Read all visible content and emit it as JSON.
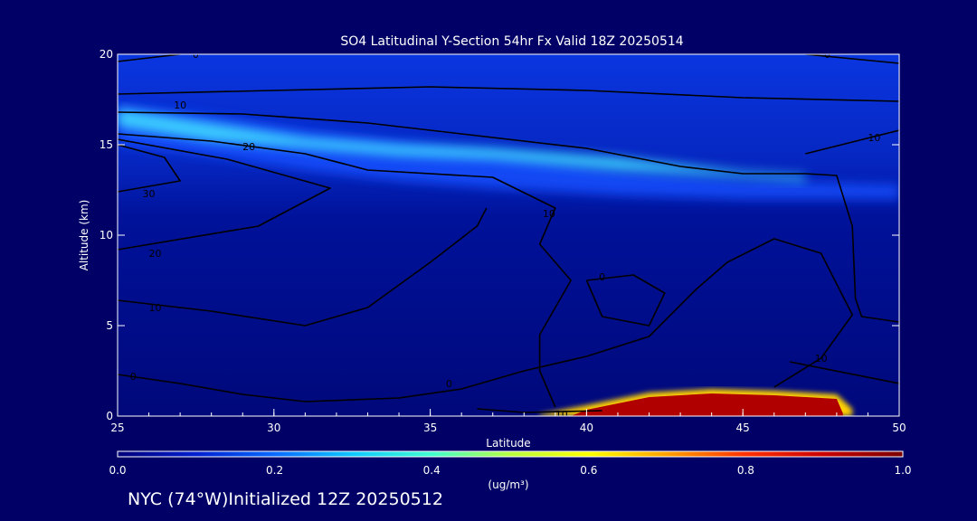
{
  "chart_data": {
    "type": "heatmap",
    "title": "SO4 Latitudinal Y-Section 54hr  Fx Valid 18Z 20250514",
    "xlabel": "Latitude",
    "ylabel": "Altitude (km)",
    "xlim": [
      25,
      50
    ],
    "ylim": [
      0,
      20
    ],
    "x_ticks": [
      25,
      30,
      35,
      40,
      45,
      50
    ],
    "y_ticks": [
      0,
      5,
      10,
      15,
      20
    ],
    "x_tick_labels": [
      "25",
      "30",
      "35",
      "40",
      "45",
      "50"
    ],
    "y_tick_labels": [
      "0",
      "5",
      "10",
      "15",
      "20"
    ],
    "colorbar": {
      "label": "(ug/m³)",
      "range": [
        0.0,
        1.0
      ],
      "tick_labels": [
        "0.0",
        "0.2",
        "0.4",
        "0.6",
        "0.8",
        "1.0"
      ],
      "colors": [
        "#00007a",
        "#0020d0",
        "#0a6aff",
        "#10c8ff",
        "#40ffd0",
        "#b8ff40",
        "#ffff00",
        "#ffa000",
        "#ff3000",
        "#c80000",
        "#7a0000"
      ]
    },
    "field": {
      "description_free": true,
      "features": [
        {
          "kind": "band",
          "lat": [
            25,
            50
          ],
          "alt_top": [
            17.2,
            16.6,
            15.8,
            15.2,
            14.6,
            13.6,
            13.0,
            12.8
          ],
          "alt_bottom": [
            15.0,
            14.4,
            13.6,
            13.0,
            12.6,
            12.2,
            12.0,
            12.0
          ],
          "lat_points": [
            25,
            28,
            31,
            34,
            37,
            41,
            45,
            50
          ],
          "value": 0.25
        },
        {
          "kind": "band",
          "lat_points": [
            25,
            28,
            31,
            34,
            37,
            41,
            45,
            47
          ],
          "alt_top": [
            17.0,
            16.2,
            15.4,
            15.0,
            14.8,
            14.3,
            13.5,
            13.3
          ],
          "alt_bottom": [
            16.0,
            15.2,
            14.8,
            14.4,
            14.2,
            13.6,
            13.2,
            13.0
          ],
          "value": 0.4
        },
        {
          "kind": "surface_plume",
          "lat_points": [
            38.5,
            40,
            42,
            44,
            46,
            48,
            48.5
          ],
          "alt_top": [
            0.1,
            0.6,
            1.3,
            1.5,
            1.4,
            1.2,
            0.4
          ],
          "value": 1.0
        }
      ]
    },
    "contours": [
      {
        "label": "0",
        "points": [
          [
            25,
            17.8
          ],
          [
            30,
            18.0
          ],
          [
            35,
            18.2
          ],
          [
            40,
            18.0
          ],
          [
            45,
            17.6
          ],
          [
            50,
            17.4
          ]
        ]
      },
      {
        "label": "0",
        "points": [
          [
            25,
            19.6
          ],
          [
            27,
            20.0
          ]
        ]
      },
      {
        "label": "0",
        "points": [
          [
            47,
            20.0
          ],
          [
            50,
            19.5
          ]
        ]
      },
      {
        "label": "10",
        "points": [
          [
            25,
            16.8
          ],
          [
            29,
            16.7
          ],
          [
            33,
            16.2
          ],
          [
            36.5,
            15.5
          ],
          [
            40,
            14.8
          ],
          [
            43,
            13.8
          ],
          [
            45,
            13.4
          ],
          [
            47,
            13.4
          ],
          [
            48,
            13.3
          ],
          [
            48.5,
            10.5
          ],
          [
            48.6,
            6.5
          ],
          [
            48.8,
            5.5
          ],
          [
            50,
            5.2
          ]
        ]
      },
      {
        "label": "10",
        "points": [
          [
            46.5,
            3.0
          ],
          [
            50,
            1.8
          ]
        ]
      },
      {
        "label": "10",
        "points": [
          [
            47.0,
            14.5
          ],
          [
            50,
            15.8
          ]
        ]
      },
      {
        "label": "20",
        "points": [
          [
            25,
            15.6
          ],
          [
            28,
            15.2
          ],
          [
            31,
            14.5
          ],
          [
            33,
            13.6
          ],
          [
            37,
            13.2
          ],
          [
            39,
            11.5
          ],
          [
            38.5,
            9.5
          ],
          [
            39.5,
            7.5
          ],
          [
            38.5,
            4.5
          ],
          [
            38.5,
            2.5
          ],
          [
            39,
            0.5
          ]
        ]
      },
      {
        "label": "20",
        "points": [
          [
            25,
            15.3
          ],
          [
            28.5,
            14.2
          ],
          [
            31.8,
            12.6
          ],
          [
            29.5,
            10.5
          ],
          [
            25,
            9.2
          ]
        ]
      },
      {
        "label": "30",
        "points": [
          [
            25,
            12.4
          ],
          [
            27,
            13.0
          ],
          [
            26.5,
            14.3
          ],
          [
            25,
            15.0
          ]
        ]
      },
      {
        "label": "10",
        "points": [
          [
            25,
            6.4
          ],
          [
            28,
            5.8
          ],
          [
            31,
            5.0
          ],
          [
            33,
            6.0
          ],
          [
            35,
            8.5
          ],
          [
            36.5,
            10.5
          ],
          [
            36.8,
            11.5
          ]
        ]
      },
      {
        "label": "0",
        "points": [
          [
            25,
            2.3
          ],
          [
            27,
            1.8
          ],
          [
            29,
            1.2
          ],
          [
            31,
            0.8
          ],
          [
            34,
            1.0
          ],
          [
            36,
            1.5
          ],
          [
            38,
            2.5
          ],
          [
            40,
            3.3
          ],
          [
            42,
            4.4
          ],
          [
            43.5,
            7.0
          ],
          [
            44.5,
            8.5
          ],
          [
            46,
            9.8
          ],
          [
            47.5,
            9.0
          ],
          [
            48.5,
            5.6
          ],
          [
            47.5,
            3.2
          ],
          [
            46,
            1.6
          ]
        ]
      },
      {
        "label": "0",
        "points": [
          [
            40,
            7.5
          ],
          [
            41.5,
            7.8
          ],
          [
            42.5,
            6.8
          ],
          [
            42,
            5.0
          ],
          [
            40.5,
            5.5
          ],
          [
            40,
            7.5
          ]
        ]
      },
      {
        "label": "10",
        "points": [
          [
            36.5,
            0.4
          ],
          [
            38,
            0.2
          ],
          [
            40.5,
            0.3
          ]
        ]
      }
    ],
    "contour_labels": [
      {
        "text": "10",
        "lat": 27.0,
        "alt": 17.2
      },
      {
        "text": "20",
        "lat": 29.2,
        "alt": 14.9
      },
      {
        "text": "30",
        "lat": 26.0,
        "alt": 12.3
      },
      {
        "text": "20",
        "lat": 26.2,
        "alt": 9.0
      },
      {
        "text": "10",
        "lat": 26.2,
        "alt": 6.0
      },
      {
        "text": "0",
        "lat": 25.5,
        "alt": 2.2
      },
      {
        "text": "10",
        "lat": 38.8,
        "alt": 11.2
      },
      {
        "text": "0",
        "lat": 40.5,
        "alt": 7.7
      },
      {
        "text": "0",
        "lat": 35.6,
        "alt": 1.8
      },
      {
        "text": "10",
        "lat": 39.2,
        "alt": 0.1
      },
      {
        "text": "10",
        "lat": 49.2,
        "alt": 15.4
      },
      {
        "text": "0",
        "lat": 47.7,
        "alt": 20.0
      },
      {
        "text": "0",
        "lat": 27.5,
        "alt": 20.0
      },
      {
        "text": "10",
        "lat": 47.5,
        "alt": 3.2
      }
    ]
  },
  "footer": "NYC (74°W)Initialized 12Z 20250512"
}
